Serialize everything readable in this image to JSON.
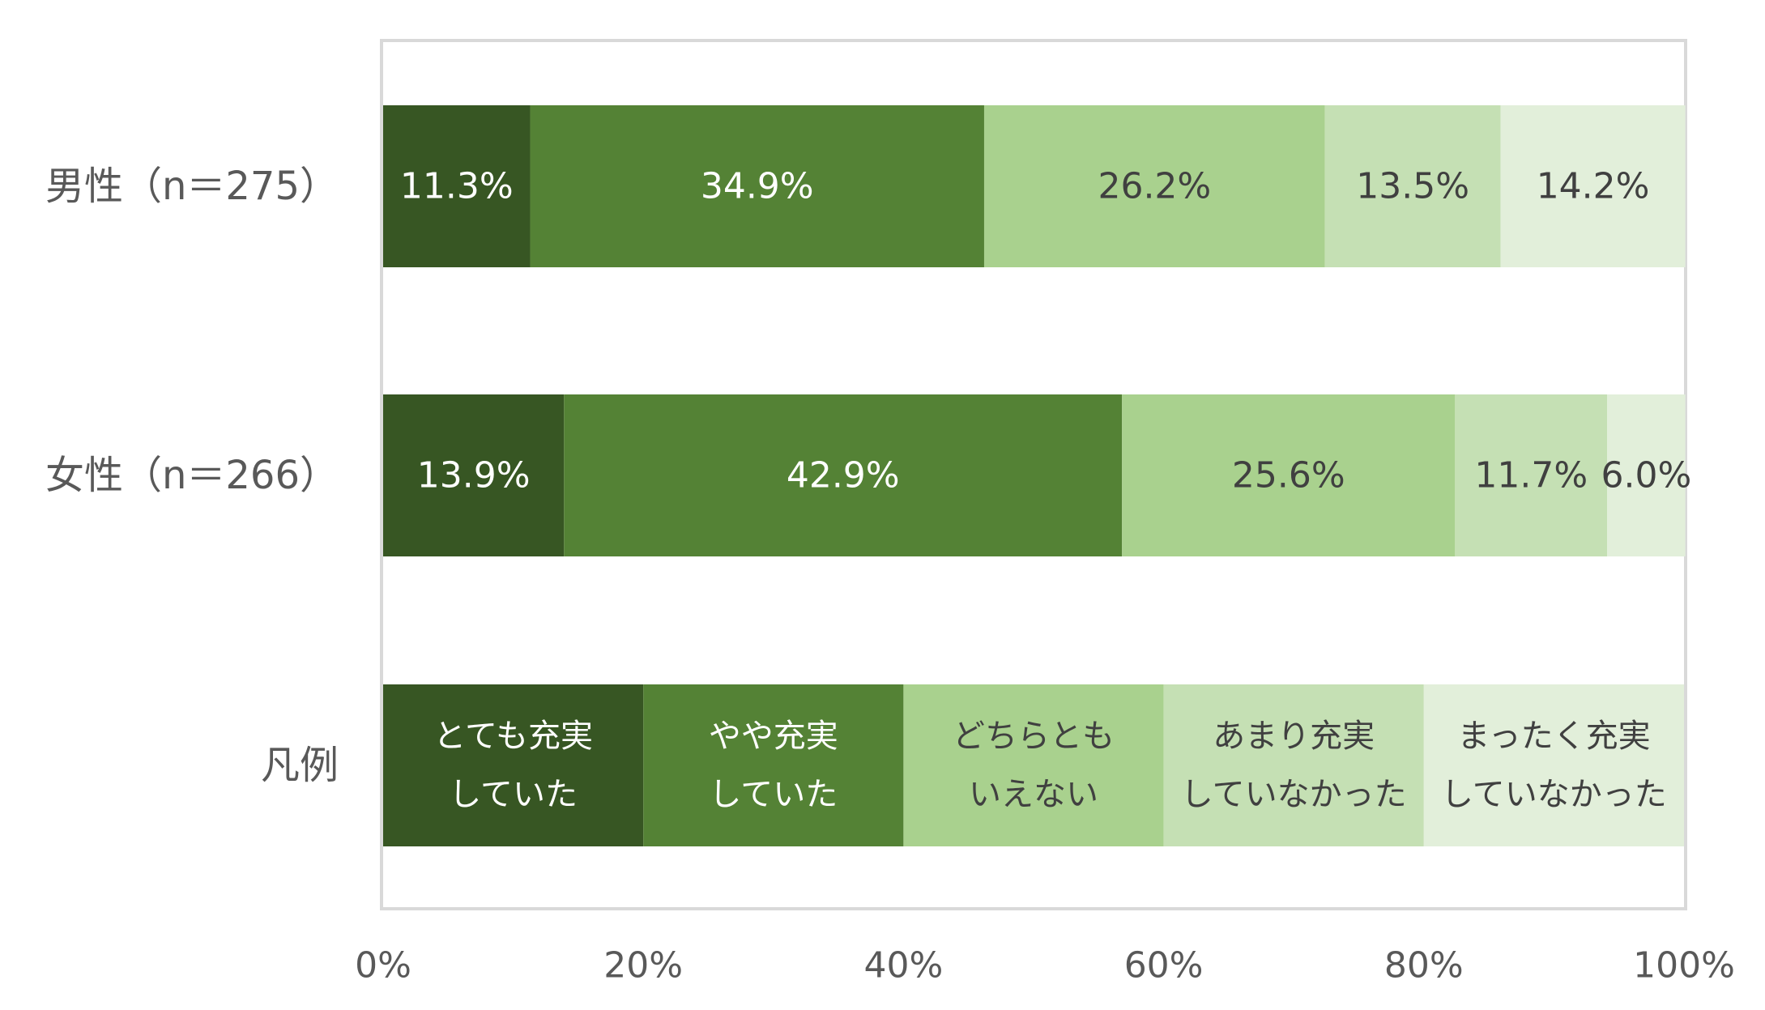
{
  "chart_data": {
    "type": "bar",
    "orientation": "horizontal",
    "stacked": "percent",
    "categories": [
      "男性（n＝275）",
      "女性（n＝266）",
      "凡例"
    ],
    "series": [
      {
        "values": [
          11.3,
          13.9,
          20
        ],
        "labels": [
          "11.3%",
          "13.9%",
          "とても充実\nしていた"
        ],
        "color": "#375623",
        "label_color": "#ffffff"
      },
      {
        "values": [
          34.9,
          42.9,
          20
        ],
        "labels": [
          "34.9%",
          "42.9%",
          "やや充実\nしていた"
        ],
        "color": "#548235",
        "label_color": "#ffffff"
      },
      {
        "values": [
          26.2,
          25.6,
          20
        ],
        "labels": [
          "26.2%",
          "25.6%",
          "どちらとも\nいえない"
        ],
        "color": "#a9d18e",
        "label_color": "#404040"
      },
      {
        "values": [
          13.5,
          11.7,
          20
        ],
        "labels": [
          "13.5%",
          "11.7%",
          "あまり充実\nしていなかった"
        ],
        "color": "#c5e0b4",
        "label_color": "#404040"
      },
      {
        "values": [
          14.2,
          6.0,
          20
        ],
        "labels": [
          "14.2%",
          "6.0%",
          "まったく充実\nしていなかった"
        ],
        "color": "#e2efda",
        "label_color": "#404040"
      }
    ],
    "x_ticks": [
      "0%",
      "20%",
      "40%",
      "60%",
      "80%",
      "100%"
    ],
    "xlim": [
      0,
      100
    ],
    "title": "",
    "xlabel": "",
    "ylabel": "",
    "grid": false,
    "legend": "bottom row in plot"
  }
}
